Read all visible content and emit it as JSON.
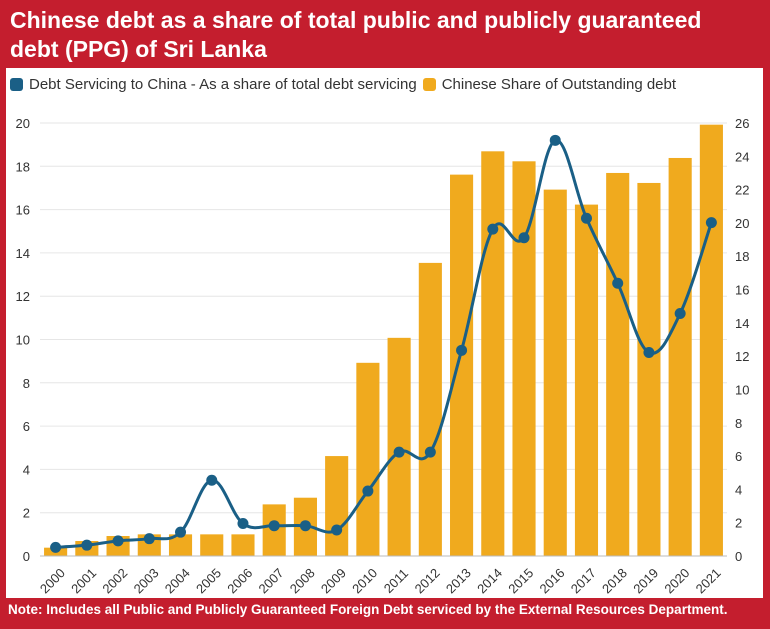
{
  "title": "Chinese debt as a share of total public and publicly guaranteed debt (PPG) of Sri Lanka",
  "note": "Note: Includes all Public and Publicly Guaranteed Foreign Debt serviced by the External Resources Department.",
  "colors": {
    "frame": "#c41e2e",
    "bar": "#f0aa1e",
    "line": "#1a5f86"
  },
  "chart_data": {
    "type": "bar",
    "categories": [
      "2000",
      "2001",
      "2002",
      "2003",
      "2004",
      "2005",
      "2006",
      "2007",
      "2008",
      "2009",
      "2010",
      "2011",
      "2012",
      "2013",
      "2014",
      "2015",
      "2016",
      "2017",
      "2018",
      "2019",
      "2020",
      "2021"
    ],
    "series": [
      {
        "name": "Debt Servicing to China - As a share of total debt servicing",
        "type": "line",
        "axis": "left",
        "values": [
          0.4,
          0.5,
          0.7,
          0.8,
          1.1,
          3.5,
          1.5,
          1.4,
          1.4,
          1.2,
          3.0,
          4.8,
          4.8,
          9.5,
          15.1,
          14.7,
          19.2,
          15.6,
          12.6,
          9.4,
          11.2,
          15.4
        ]
      },
      {
        "name": "Chinese Share of Outstanding debt",
        "type": "bar",
        "axis": "right",
        "values": [
          0.5,
          0.9,
          1.2,
          1.3,
          1.3,
          1.3,
          1.3,
          3.1,
          3.5,
          6.0,
          11.6,
          13.1,
          17.6,
          22.9,
          24.3,
          23.7,
          22.0,
          21.1,
          23.0,
          22.4,
          23.9,
          25.9
        ]
      }
    ],
    "y_left": {
      "ylim": [
        0,
        20
      ],
      "ticks": [
        "0",
        "2",
        "4",
        "6",
        "8",
        "10",
        "12",
        "14",
        "16",
        "18",
        "20"
      ]
    },
    "y_right": {
      "ylim": [
        0,
        26
      ],
      "ticks": [
        "0",
        "2",
        "4",
        "6",
        "8",
        "10",
        "12",
        "14",
        "16",
        "18",
        "20",
        "22",
        "24",
        "26"
      ]
    },
    "grid": true,
    "legend": "top-left"
  }
}
